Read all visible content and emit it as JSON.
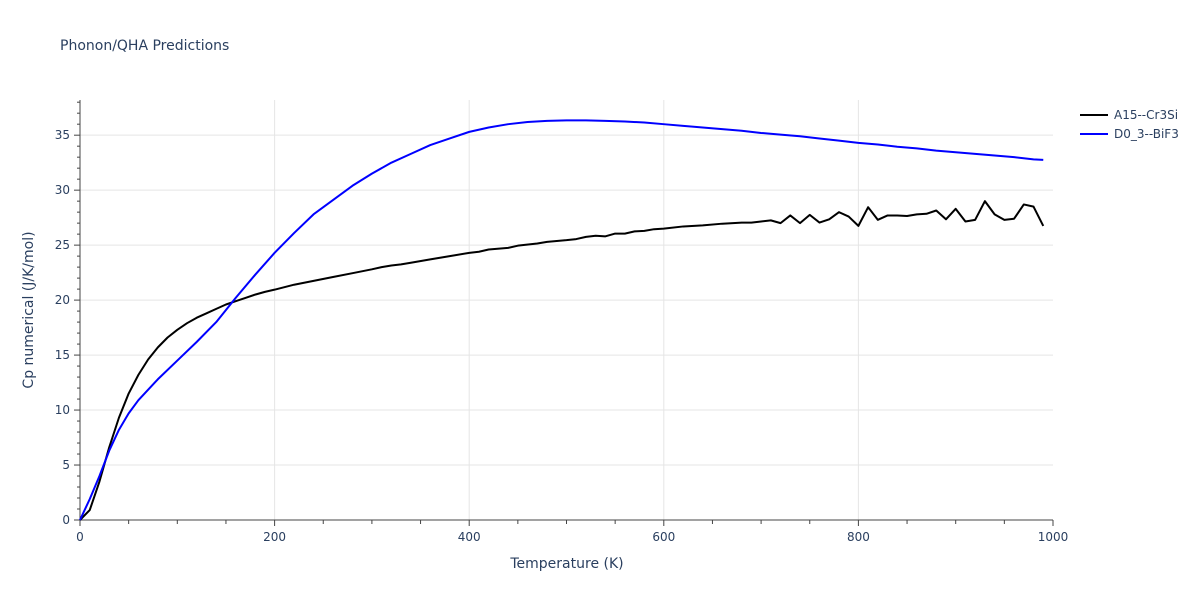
{
  "chart_data": {
    "type": "line",
    "title": "Phonon/QHA Predictions",
    "xlabel": "Temperature (K)",
    "ylabel": "Cp numerical (J/K/mol)",
    "xlim": [
      0,
      1000
    ],
    "ylim": [
      0,
      38.2
    ],
    "x_ticks": [
      0,
      200,
      400,
      600,
      800,
      1000
    ],
    "y_ticks": [
      0,
      5,
      10,
      15,
      20,
      25,
      30,
      35
    ],
    "grid": true,
    "legend_position": "top-right",
    "series": [
      {
        "name": "A15--Cr3Si",
        "color": "#000000",
        "points": [
          [
            0,
            0
          ],
          [
            10,
            0.9
          ],
          [
            20,
            3.5
          ],
          [
            30,
            6.6
          ],
          [
            40,
            9.3
          ],
          [
            50,
            11.5
          ],
          [
            60,
            13.2
          ],
          [
            70,
            14.6
          ],
          [
            80,
            15.7
          ],
          [
            90,
            16.6
          ],
          [
            100,
            17.3
          ],
          [
            110,
            17.9
          ],
          [
            120,
            18.4
          ],
          [
            130,
            18.8
          ],
          [
            140,
            19.2
          ],
          [
            150,
            19.6
          ],
          [
            160,
            19.9
          ],
          [
            170,
            20.2
          ],
          [
            180,
            20.5
          ],
          [
            190,
            20.75
          ],
          [
            200,
            20.95
          ],
          [
            220,
            21.4
          ],
          [
            240,
            21.75
          ],
          [
            260,
            22.1
          ],
          [
            280,
            22.45
          ],
          [
            300,
            22.8
          ],
          [
            310,
            23.0
          ],
          [
            320,
            23.15
          ],
          [
            330,
            23.25
          ],
          [
            340,
            23.4
          ],
          [
            360,
            23.7
          ],
          [
            380,
            24.0
          ],
          [
            400,
            24.3
          ],
          [
            410,
            24.4
          ],
          [
            420,
            24.6
          ],
          [
            440,
            24.75
          ],
          [
            450,
            24.95
          ],
          [
            470,
            25.15
          ],
          [
            480,
            25.3
          ],
          [
            500,
            25.45
          ],
          [
            510,
            25.55
          ],
          [
            520,
            25.75
          ],
          [
            530,
            25.85
          ],
          [
            540,
            25.8
          ],
          [
            550,
            26.05
          ],
          [
            560,
            26.05
          ],
          [
            570,
            26.25
          ],
          [
            580,
            26.3
          ],
          [
            590,
            26.45
          ],
          [
            600,
            26.5
          ],
          [
            620,
            26.7
          ],
          [
            640,
            26.8
          ],
          [
            660,
            26.95
          ],
          [
            680,
            27.05
          ],
          [
            690,
            27.05
          ],
          [
            700,
            27.15
          ],
          [
            710,
            27.25
          ],
          [
            720,
            27.0
          ],
          [
            730,
            27.7
          ],
          [
            740,
            27.0
          ],
          [
            750,
            27.75
          ],
          [
            760,
            27.05
          ],
          [
            770,
            27.35
          ],
          [
            780,
            28.0
          ],
          [
            790,
            27.6
          ],
          [
            800,
            26.75
          ],
          [
            810,
            28.45
          ],
          [
            820,
            27.3
          ],
          [
            830,
            27.7
          ],
          [
            840,
            27.7
          ],
          [
            850,
            27.65
          ],
          [
            860,
            27.8
          ],
          [
            870,
            27.85
          ],
          [
            880,
            28.15
          ],
          [
            890,
            27.35
          ],
          [
            900,
            28.3
          ],
          [
            910,
            27.15
          ],
          [
            920,
            27.3
          ],
          [
            930,
            29.0
          ],
          [
            940,
            27.8
          ],
          [
            950,
            27.3
          ],
          [
            960,
            27.4
          ],
          [
            970,
            28.7
          ],
          [
            980,
            28.5
          ],
          [
            990,
            26.75
          ]
        ]
      },
      {
        "name": "D0_3--BiF3",
        "color": "#0000ff",
        "points": [
          [
            0,
            0
          ],
          [
            10,
            1.9
          ],
          [
            20,
            4.0
          ],
          [
            30,
            6.3
          ],
          [
            40,
            8.2
          ],
          [
            50,
            9.7
          ],
          [
            60,
            10.9
          ],
          [
            80,
            12.8
          ],
          [
            100,
            14.5
          ],
          [
            120,
            16.2
          ],
          [
            140,
            18.0
          ],
          [
            160,
            20.2
          ],
          [
            180,
            22.3
          ],
          [
            200,
            24.3
          ],
          [
            220,
            26.1
          ],
          [
            240,
            27.8
          ],
          [
            260,
            29.1
          ],
          [
            280,
            30.4
          ],
          [
            300,
            31.5
          ],
          [
            320,
            32.5
          ],
          [
            340,
            33.3
          ],
          [
            360,
            34.1
          ],
          [
            380,
            34.7
          ],
          [
            400,
            35.3
          ],
          [
            420,
            35.7
          ],
          [
            440,
            36.0
          ],
          [
            460,
            36.2
          ],
          [
            480,
            36.3
          ],
          [
            500,
            36.35
          ],
          [
            520,
            36.35
          ],
          [
            540,
            36.3
          ],
          [
            560,
            36.25
          ],
          [
            580,
            36.15
          ],
          [
            600,
            36.0
          ],
          [
            620,
            35.85
          ],
          [
            640,
            35.7
          ],
          [
            660,
            35.55
          ],
          [
            680,
            35.4
          ],
          [
            700,
            35.2
          ],
          [
            720,
            35.05
          ],
          [
            740,
            34.9
          ],
          [
            760,
            34.7
          ],
          [
            780,
            34.5
          ],
          [
            800,
            34.3
          ],
          [
            820,
            34.15
          ],
          [
            840,
            33.95
          ],
          [
            860,
            33.8
          ],
          [
            880,
            33.6
          ],
          [
            900,
            33.45
          ],
          [
            920,
            33.3
          ],
          [
            940,
            33.15
          ],
          [
            960,
            33.0
          ],
          [
            980,
            32.8
          ],
          [
            990,
            32.75
          ]
        ]
      }
    ]
  }
}
